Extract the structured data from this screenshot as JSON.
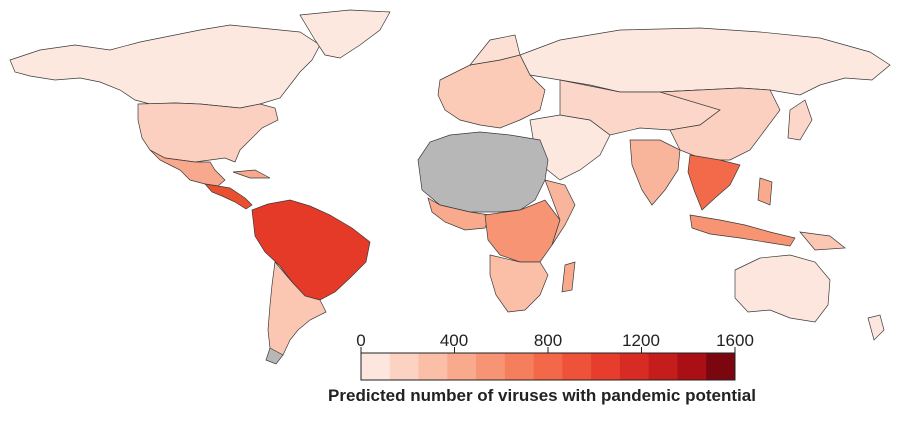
{
  "map": {
    "no_data_color": "#b7b7b7",
    "border_color": "#3a3a3a"
  },
  "legend": {
    "title": "Predicted number of viruses with pandemic potential",
    "ticks": [
      "0",
      "400",
      "800",
      "1200",
      "1600"
    ],
    "tick_values": [
      0,
      400,
      800,
      1200,
      1600
    ],
    "min": 0,
    "max": 1600,
    "color_steps": [
      "#fde6dd",
      "#fcd2c2",
      "#fbbea6",
      "#f9a98c",
      "#f79473",
      "#f57e5c",
      "#f26848",
      "#ee5239",
      "#e63d2d",
      "#d72b23",
      "#c51c1c",
      "#a90f14",
      "#7a0610"
    ]
  }
}
